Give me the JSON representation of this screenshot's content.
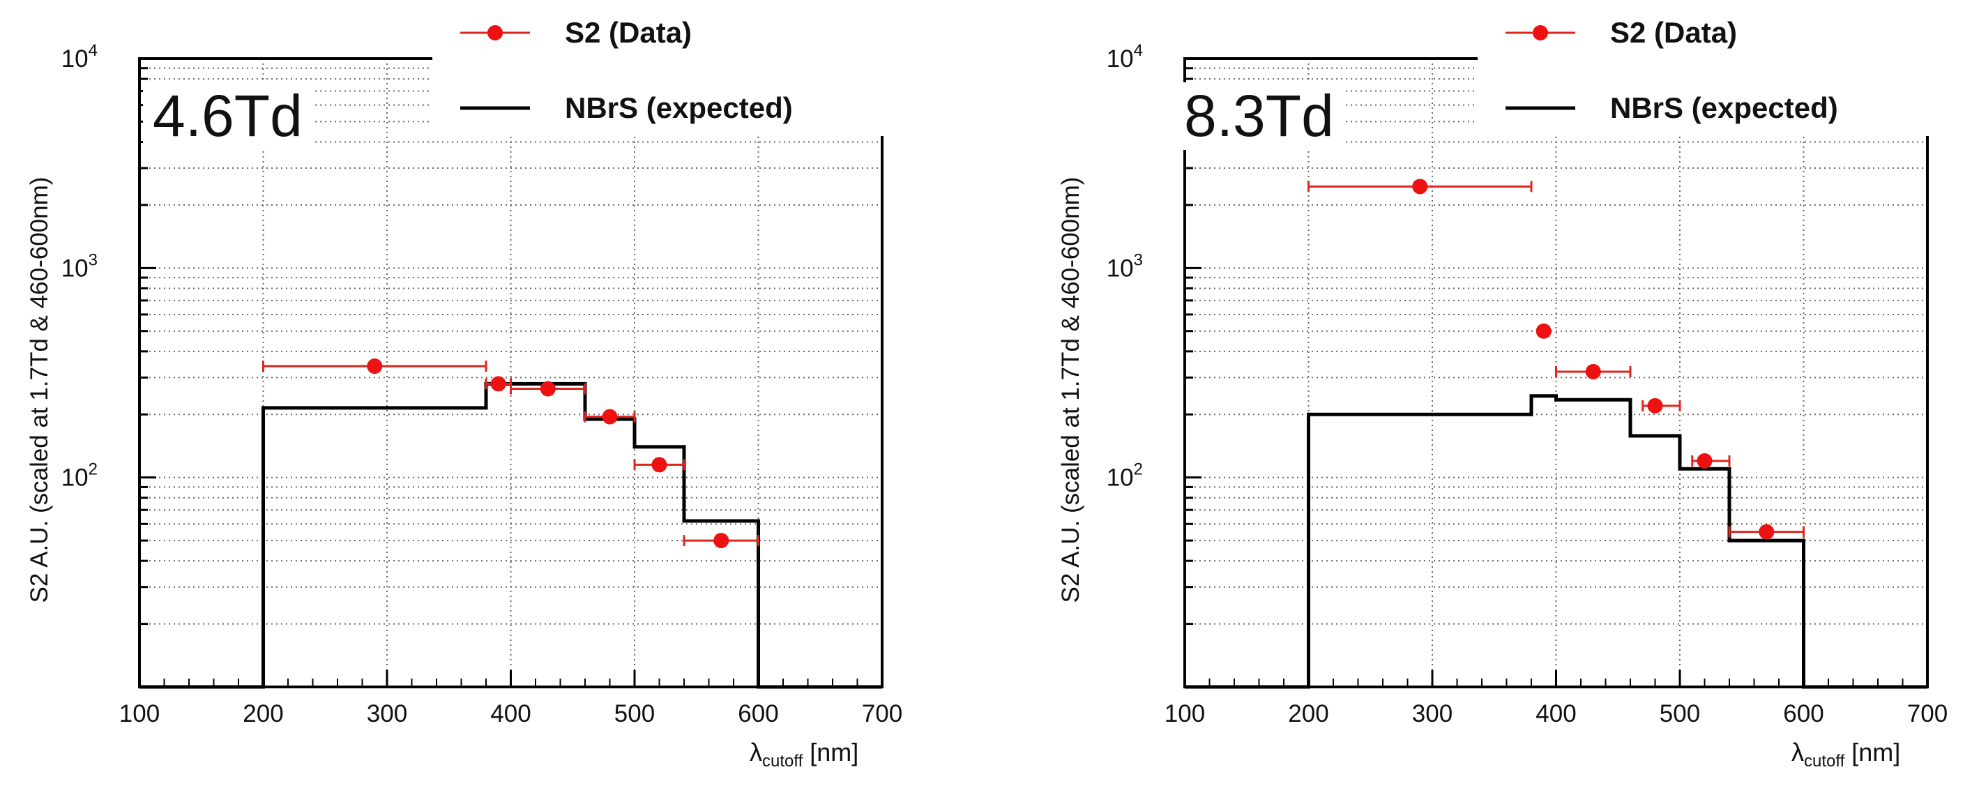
{
  "chart_data": [
    {
      "type": "step+scatter",
      "panel_label": "4.6Td",
      "xlabel": "λ",
      "xlabel_sub": "cutoff",
      "xlabel_unit": "[nm]",
      "ylabel": "S2 A.U. (scaled at 1.7Td & 460-600nm)",
      "xlim": [
        100,
        700
      ],
      "ylim": [
        10,
        10000
      ],
      "yscale": "log",
      "x_ticks": [
        "100",
        "200",
        "300",
        "400",
        "500",
        "600",
        "700"
      ],
      "y_ticks": [
        {
          "base": "10",
          "exp": "2"
        },
        {
          "base": "10",
          "exp": "3"
        },
        {
          "base": "10",
          "exp": "4"
        }
      ],
      "grid": true,
      "legend": {
        "data_label": "S2 (Data)",
        "expected_label": "NBrS (expected)",
        "position": "top-right"
      },
      "expected_step": {
        "name": "NBrS (expected)",
        "edges": [
          100,
          200,
          380,
          400,
          460,
          500,
          540,
          600,
          700
        ],
        "values": [
          10,
          215,
          280,
          280,
          190,
          140,
          62,
          10
        ]
      },
      "data_points": {
        "name": "S2 (Data)",
        "x": [
          290,
          390,
          430,
          480,
          520,
          570
        ],
        "xerr_low": [
          200,
          380,
          400,
          460,
          500,
          540
        ],
        "xerr_high": [
          380,
          400,
          460,
          500,
          540,
          600
        ],
        "y": [
          340,
          280,
          265,
          195,
          115,
          50
        ]
      }
    },
    {
      "type": "step+scatter",
      "panel_label": "8.3Td",
      "xlabel": "λ",
      "xlabel_sub": "cutoff",
      "xlabel_unit": "[nm]",
      "ylabel": "S2 A.U. (scaled at 1.7Td & 460-600nm)",
      "xlim": [
        100,
        700
      ],
      "ylim": [
        10,
        10000
      ],
      "yscale": "log",
      "x_ticks": [
        "100",
        "200",
        "300",
        "400",
        "500",
        "600",
        "700"
      ],
      "y_ticks": [
        {
          "base": "10",
          "exp": "2"
        },
        {
          "base": "10",
          "exp": "3"
        },
        {
          "base": "10",
          "exp": "4"
        }
      ],
      "grid": true,
      "legend": {
        "data_label": "S2 (Data)",
        "expected_label": "NBrS (expected)",
        "position": "top-right"
      },
      "expected_step": {
        "name": "NBrS (expected)",
        "edges": [
          100,
          200,
          380,
          390,
          400,
          460,
          500,
          540,
          600,
          700
        ],
        "values": [
          10,
          200,
          245,
          245,
          235,
          158,
          110,
          50,
          10
        ]
      },
      "data_points": {
        "name": "S2 (Data)",
        "x": [
          290,
          390,
          430,
          480,
          520,
          570
        ],
        "xerr_low": [
          200,
          390,
          400,
          470,
          510,
          540
        ],
        "xerr_high": [
          380,
          394,
          460,
          500,
          540,
          600
        ],
        "y": [
          2450,
          500,
          320,
          220,
          120,
          55
        ]
      }
    }
  ]
}
